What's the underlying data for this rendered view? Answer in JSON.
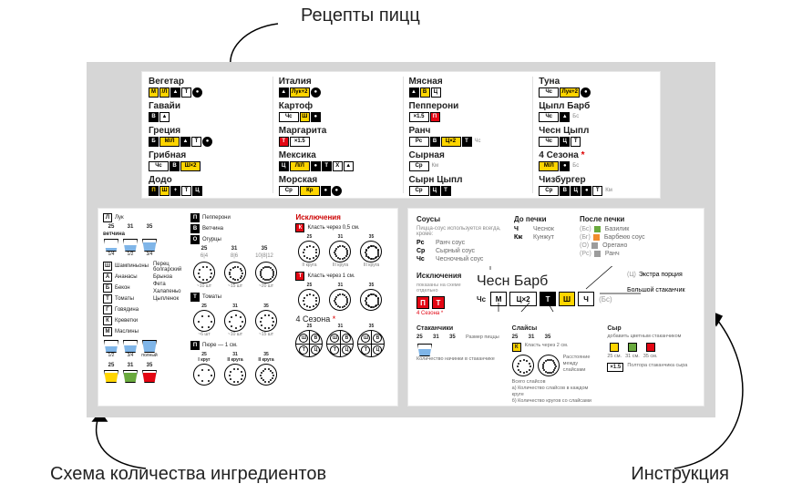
{
  "labels": {
    "top": "Рецепты пицц",
    "bl": "Схема количества ингредиентов",
    "br": "Инструкция"
  },
  "colors": {
    "stage": "#d6d6d6",
    "white": "#ffffff",
    "yellow": "#ffd500",
    "red": "#e30613",
    "black": "#000000",
    "blue": "#7fb5e8",
    "green": "#6aaa3e",
    "orange": "#f08c2e",
    "grey": "#9c9c9c",
    "paren": "#999999"
  },
  "recipes": [
    [
      {
        "name": "Вегетар",
        "cells": [
          {
            "t": "М",
            "bg": "yellow"
          },
          {
            "t": "/Л",
            "bg": "yellow"
          },
          {
            "t": "▲",
            "bg": "black",
            "fg": "white"
          },
          {
            "t": "Т",
            "bg": "white"
          },
          {
            "t": "●",
            "bg": "black",
            "fg": "white",
            "shape": "circ"
          }
        ]
      },
      {
        "name": "Гавайи",
        "cells": [
          {
            "t": "В",
            "bg": "black",
            "fg": "white"
          },
          {
            "t": "▲",
            "bg": "white"
          }
        ]
      },
      {
        "name": "Греция",
        "cells": [
          {
            "t": "Б",
            "bg": "black",
            "fg": "white"
          },
          {
            "t": "М/Л",
            "bg": "yellow",
            "wide": true
          },
          {
            "t": "▲",
            "bg": "black",
            "fg": "white"
          },
          {
            "t": "Т",
            "bg": "white"
          },
          {
            "t": "●",
            "bg": "black",
            "fg": "white",
            "shape": "circ"
          }
        ]
      },
      {
        "name": "Грибная",
        "cells": [
          {
            "t": "Чс",
            "bg": "white",
            "wide": true
          },
          {
            "t": "В",
            "bg": "black",
            "fg": "white"
          },
          {
            "t": "Ш×2",
            "bg": "yellow",
            "wide": true
          }
        ]
      },
      {
        "name": "Додо",
        "cells": [
          {
            "t": "П",
            "bg": "black",
            "fg": "yellow"
          },
          {
            "t": "Ш",
            "bg": "yellow"
          },
          {
            "t": "+",
            "bg": "black",
            "fg": "white"
          },
          {
            "t": "Т",
            "bg": "white"
          },
          {
            "t": "Ц",
            "bg": "black",
            "fg": "white"
          }
        ]
      }
    ],
    [
      {
        "name": "Италия",
        "cells": [
          {
            "t": "▲",
            "bg": "black",
            "fg": "white"
          },
          {
            "t": "Лук+2",
            "bg": "yellow",
            "wide": true
          },
          {
            "t": "●",
            "bg": "black",
            "fg": "white",
            "shape": "circ"
          }
        ]
      },
      {
        "name": "Картоф",
        "cells": [
          {
            "t": "Чс",
            "bg": "white",
            "wide": true
          },
          {
            "t": "Ш",
            "bg": "yellow"
          },
          {
            "t": "●",
            "bg": "black",
            "fg": "white"
          }
        ]
      },
      {
        "name": "Маргарита",
        "cells": [
          {
            "t": "Т",
            "bg": "red",
            "fg": "white"
          },
          {
            "t": "×1.5",
            "bg": "white",
            "wide": true
          }
        ]
      },
      {
        "name": "Мексика",
        "cells": [
          {
            "t": "Ц",
            "bg": "black",
            "fg": "white"
          },
          {
            "t": "Л/Л",
            "bg": "yellow",
            "wide": true
          },
          {
            "t": "●",
            "bg": "black",
            "fg": "white"
          },
          {
            "t": "Т",
            "bg": "black",
            "fg": "white"
          },
          {
            "t": "Х",
            "bg": "white"
          },
          {
            "t": "▲",
            "bg": "white"
          }
        ]
      },
      {
        "name": "Морская",
        "cells": [
          {
            "t": "Ср",
            "bg": "white",
            "wide": true
          },
          {
            "t": "Кр",
            "bg": "yellow",
            "wide": true
          },
          {
            "t": "●",
            "bg": "black",
            "fg": "white"
          },
          {
            "t": "●",
            "bg": "black",
            "fg": "white",
            "shape": "circ"
          }
        ]
      }
    ],
    [
      {
        "name": "Мясная",
        "cells": [
          {
            "t": "▲",
            "bg": "black",
            "fg": "white"
          },
          {
            "t": "В",
            "bg": "yellow"
          },
          {
            "t": "Ц",
            "bg": "white"
          }
        ]
      },
      {
        "name": "Пепперони",
        "cells": [
          {
            "t": "×1.5",
            "bg": "white",
            "wide": true
          },
          {
            "t": "П",
            "bg": "red",
            "fg": "white"
          }
        ]
      },
      {
        "name": "Ранч",
        "cells": [
          {
            "t": "Рс",
            "bg": "white",
            "wide": true
          },
          {
            "t": "В",
            "bg": "black",
            "fg": "white"
          },
          {
            "t": "Ц×2",
            "bg": "yellow",
            "wide": true
          },
          {
            "t": "Т",
            "bg": "black",
            "fg": "white"
          },
          {
            "t": "Чс",
            "txt": true
          }
        ]
      },
      {
        "name": "Сырная",
        "cells": [
          {
            "t": "Ср",
            "bg": "white",
            "wide": true
          },
          {
            "t": "Км",
            "txt": true
          }
        ]
      },
      {
        "name": "Сырн Цыпл",
        "cells": [
          {
            "t": "Ср",
            "bg": "white",
            "wide": true
          },
          {
            "t": "Ц",
            "bg": "black",
            "fg": "white"
          },
          {
            "t": "Т",
            "bg": "black",
            "fg": "white"
          }
        ]
      }
    ],
    [
      {
        "name": "Туна",
        "cells": [
          {
            "t": "Чс",
            "bg": "white",
            "wide": true
          },
          {
            "t": "Лук+2",
            "bg": "yellow",
            "wide": true
          },
          {
            "t": "●",
            "bg": "black",
            "fg": "white",
            "shape": "circ"
          }
        ]
      },
      {
        "name": "Цыпл Барб",
        "cells": [
          {
            "t": "Чс",
            "bg": "white",
            "wide": true
          },
          {
            "t": "▲",
            "bg": "black",
            "fg": "white"
          },
          {
            "t": "Бс",
            "txt": true
          }
        ]
      },
      {
        "name": "Чесн Цыпл",
        "cells": [
          {
            "t": "Чс",
            "bg": "white",
            "wide": true
          },
          {
            "t": "Ц",
            "bg": "black",
            "fg": "white"
          },
          {
            "t": "Т",
            "bg": "white"
          }
        ]
      },
      {
        "name": "4 Сезона",
        "star": true,
        "cells": [
          {
            "t": "М/Л",
            "bg": "yellow",
            "wide": true
          },
          {
            "t": "●",
            "bg": "black",
            "fg": "white"
          },
          {
            "t": "Бс",
            "txt": true
          }
        ]
      },
      {
        "name": "Чизбургер",
        "cells": [
          {
            "t": "Ср",
            "bg": "white",
            "wide": true
          },
          {
            "t": "В",
            "bg": "black",
            "fg": "white"
          },
          {
            "t": "Ц",
            "bg": "black",
            "fg": "white"
          },
          {
            "t": "●",
            "bg": "black",
            "fg": "white"
          },
          {
            "t": "Т",
            "bg": "white"
          },
          {
            "t": "Км",
            "txt": true
          }
        ]
      }
    ]
  ],
  "ingredients": {
    "col1": {
      "top": {
        "box": "Л",
        "name": "Лук"
      },
      "row": [
        "25",
        "31",
        "35"
      ],
      "caption": "ветчина",
      "cups": [
        {
          "v": "25",
          "fill": 0.25,
          "color": "blue",
          "sub": "1/4"
        },
        {
          "v": "",
          "fill": 0.5,
          "color": "blue",
          "sub": "1/2"
        },
        {
          "v": "",
          "fill": 0.75,
          "color": "blue",
          "sub": "3/4"
        }
      ],
      "list": [
        {
          "b": "Ш",
          "t": "Шампиньоны"
        },
        {
          "b": "А",
          "t": "Ананасы"
        },
        {
          "b": "Б",
          "t": "Бекон"
        },
        {
          "b": "Т",
          "t": "Томаты"
        },
        {
          "b": "Г",
          "t": "Говядина"
        },
        {
          "b": "К",
          "t": "Креветки"
        },
        {
          "b": "М",
          "t": "Маслины"
        }
      ],
      "list2": [
        {
          "t": "Перец болгарский"
        },
        {
          "t": "Брынза"
        },
        {
          "t": "Фета"
        },
        {
          "t": "Халапеньо"
        },
        {
          "t": "Цыпленок"
        }
      ],
      "cups2": [
        {
          "fill": 0.5,
          "color": "blue",
          "sub": "1/2"
        },
        {
          "fill": 0.6,
          "color": "blue",
          "sub": "3/4"
        },
        {
          "fill": 1.0,
          "color": "blue",
          "sub": "полный"
        }
      ],
      "botrow": [
        "25",
        "31",
        "35"
      ],
      "botcups": [
        {
          "fill": 0.8,
          "color": "yellow",
          "sub": ""
        },
        {
          "fill": 0.8,
          "color": "green",
          "sub": ""
        },
        {
          "fill": 0.8,
          "color": "red",
          "sub": ""
        }
      ]
    },
    "col2": {
      "groups": [
        {
          "box": "П",
          "name": "Пепперони"
        },
        {
          "box": "В",
          "name": "Ветчина"
        },
        {
          "box": "О",
          "name": "Огурцы"
        }
      ],
      "headers": [
        "25",
        "31",
        "35"
      ],
      "subhdr": [
        "6|4",
        "8|6",
        "10|8|12"
      ],
      "circ1": [
        "",
        "",
        ""
      ],
      "lbl1": [
        "~10 шт",
        "~15 шт",
        "~20 шт"
      ],
      "tHeader": {
        "box": "Т",
        "name": "Томаты"
      },
      "circ2labels": [
        "25",
        "31",
        "35"
      ],
      "circ2sub": [
        "~6 шт",
        "~10 шт",
        "~15 шт"
      ],
      "pHeader": {
        "box": "П",
        "name": "Пюре — 1 см."
      },
      "circ3labels": [
        "25\nI круг",
        "31\nII круга",
        "35\nII круга"
      ],
      "excTitle": "Исключения",
      "ex1": {
        "box": "К",
        "txt": "Класть через 0,5 см."
      },
      "ex1row": [
        "25",
        "31",
        "35"
      ],
      "ex1sub": [
        "II круга",
        "III круга",
        "III круга"
      ],
      "ex2": {
        "box": "Т",
        "txt": "Класть через 1 см."
      },
      "ex2row": [
        "25",
        "31",
        "35"
      ],
      "fourTitle": "4 Сезона",
      "fourRow": [
        "25",
        "31",
        "35"
      ],
      "quarters": [
        "Ш",
        "В",
        "Т",
        "Ц"
      ]
    }
  },
  "instruction": {
    "sauces": {
      "title": "Соусы",
      "sub": "Пицца-соус используется всегда, кроме:",
      "items": [
        {
          "k": "Рс",
          "v": "Ранч соус"
        },
        {
          "k": "Ср",
          "v": "Сырный соус"
        },
        {
          "k": "Чс",
          "v": "Чесночный соус"
        }
      ]
    },
    "before": {
      "title": "До печки",
      "items": [
        {
          "k": "Ч",
          "v": "Чеснок"
        },
        {
          "k": "Кж",
          "v": "Кунжут"
        }
      ]
    },
    "after": {
      "title": "После печки",
      "items": [
        {
          "p": "(Бс)",
          "v": "Базилик",
          "c": "green"
        },
        {
          "p": "(Бг)",
          "v": "Барбекю соус",
          "c": "orange"
        },
        {
          "p": "(О)",
          "v": "Орегано",
          "c": "grey"
        },
        {
          "p": "(Рс)",
          "v": "Ранч",
          "c": "grey"
        }
      ]
    },
    "exBlock": {
      "title": "Исключения",
      "sub": "показаны на схеме отдельно",
      "boxes": [
        {
          "t": "П",
          "bg": "red",
          "fg": "white"
        },
        {
          "t": "Т",
          "bg": "red",
          "fg": "white"
        }
      ],
      "foot": "4 Сезона *"
    },
    "example": {
      "name": "Чесн Барб",
      "pre": "Чс",
      "cells": [
        {
          "t": "М",
          "bg": "white"
        },
        {
          "t": "Ц×2",
          "bg": "white",
          "wide": true
        },
        {
          "t": "Т",
          "bg": "black",
          "fg": "white"
        },
        {
          "t": "Ш",
          "bg": "yellow"
        },
        {
          "t": "Ч",
          "bg": "white"
        }
      ],
      "post": "(Бс)"
    },
    "rightPtrs": [
      {
        "p": "(Ц)",
        "t": "Экстра порция"
      },
      {
        "t": "Большой стаканчик"
      }
    ],
    "bottom": [
      {
        "h": "Стаканчики",
        "row": [
          "25",
          "31",
          "35"
        ],
        "sub": "Размер пиццы",
        "foot": "Количество начинки в стаканчике"
      },
      {
        "h": "Слайсы",
        "row": [
          "25",
          "31",
          "35"
        ],
        "foot1": "Всего слайсов",
        "foot2": "а) Количество слайсов в каждом круге",
        "foot3": "б) Количество кругов со слайсами",
        "note": "Расстояние между слайсами",
        "boxk": "К",
        "boxt": "Класть через 2 см."
      },
      {
        "h": "Сыр",
        "sub": "добавить цветным стаканчиком",
        "row": [
          {
            "c": "yellow",
            "t": "25 см."
          },
          {
            "c": "green",
            "t": "31 см."
          },
          {
            "c": "red",
            "t": "35 см."
          }
        ],
        "foot": "Полтора стаканчика сыра",
        "mark": "×1.5"
      }
    ]
  }
}
